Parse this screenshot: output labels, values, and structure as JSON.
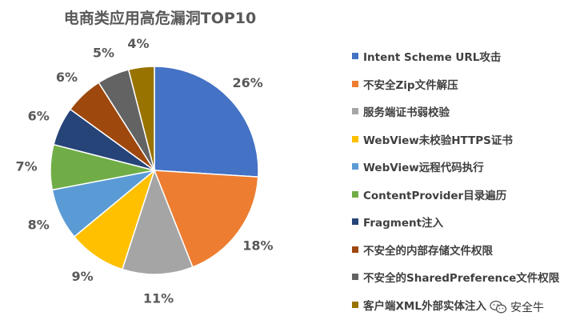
{
  "chart_data": {
    "type": "pie",
    "title": "电商类应用高危漏洞TOP10",
    "legend_position": "right",
    "categories": [
      "Intent Scheme URL攻击",
      "不安全Zip文件解压",
      "服务端证书弱校验",
      "WebView未校验HTTPS证书",
      "WebView远程代码执行",
      "ContentProvider目录遍历",
      "Fragment注入",
      "不安全的内部存储文件权限",
      "不安全的SharedPreference文件权限",
      "客户端XML外部实体注入"
    ],
    "values": [
      26,
      18,
      11,
      9,
      8,
      7,
      6,
      6,
      5,
      4
    ],
    "labels": [
      "26%",
      "18%",
      "11%",
      "9%",
      "8%",
      "7%",
      "6%",
      "6%",
      "5%",
      "4%"
    ],
    "colors": [
      "#4472C4",
      "#ED7D31",
      "#A5A5A5",
      "#FFC000",
      "#5B9BD5",
      "#70AD47",
      "#264478",
      "#9E480E",
      "#636363",
      "#997300"
    ]
  },
  "watermark": {
    "text": "安全牛"
  }
}
